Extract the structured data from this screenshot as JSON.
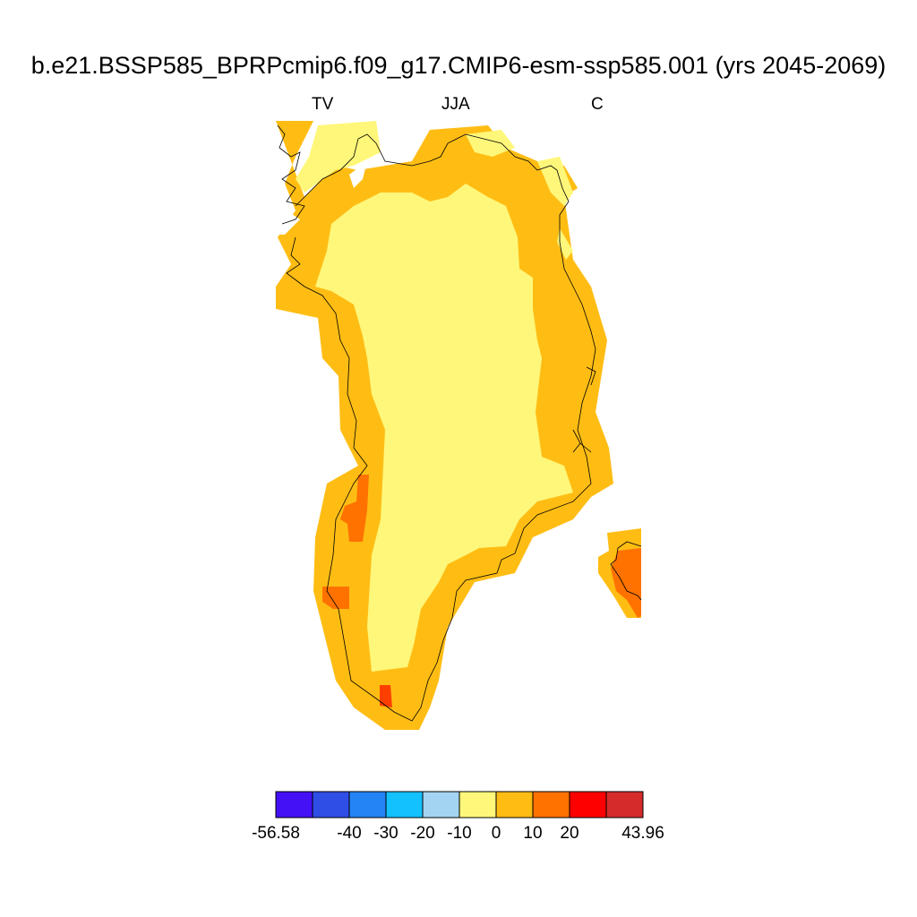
{
  "title": "b.e21.BSSP585_BPRPcmip6.f09_g17.CMIP6-esm-ssp585.001 (yrs 2045-2069)",
  "subtitle_left": "TV",
  "subtitle_center": "JJA",
  "subtitle_right": "C",
  "colorbar": {
    "colors": [
      "#4410f5",
      "#2f4ee6",
      "#2484f5",
      "#14c1ff",
      "#a3d5f2",
      "#fff77a",
      "#ffbd14",
      "#ff7200",
      "#ff0000",
      "#d62b2b"
    ],
    "tick_labels": [
      "-56.58",
      "-40",
      "-30",
      "-20",
      "-10",
      "0",
      "10",
      "20",
      "43.96"
    ],
    "tick_boundaries": [
      0,
      2,
      3,
      4,
      5,
      6,
      7,
      8,
      10
    ]
  },
  "map_colors": {
    "ice_interior": "#fff77a",
    "coast_band": "#ffbd14",
    "hotspot": "#ff7200",
    "hotspot_strong": "#ff3f00",
    "coastline": "#000000"
  }
}
